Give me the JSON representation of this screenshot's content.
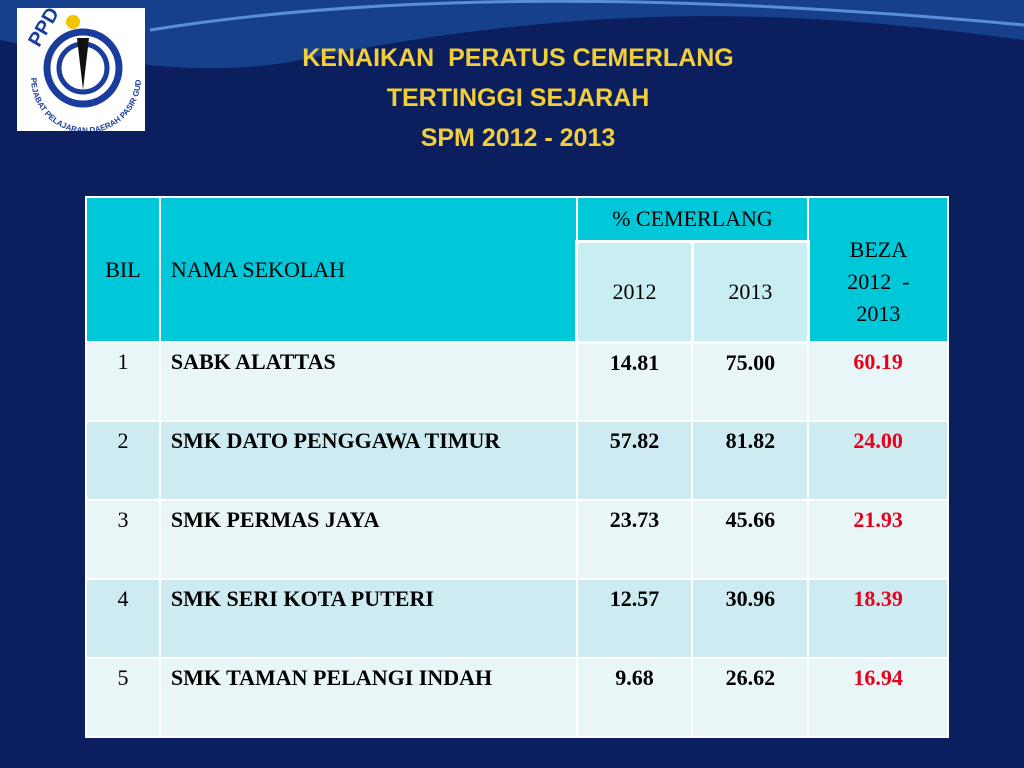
{
  "logo": {
    "abbr": "PPD",
    "name": "PEJABAT PELAJARAN DAERAH PASIR GUDANG"
  },
  "header": {
    "title_lines": [
      "KENAIKAN  PERATUS CEMERLANG",
      "TERTINGGI SEJARAH",
      "SPM 2012 - 2013"
    ]
  },
  "table": {
    "columns": {
      "bil": "BIL",
      "nama": "NAMA SEKOLAH",
      "group": "% CEMERLANG",
      "year1": "2012",
      "year2": "2013",
      "beza_lines": [
        "BEZA",
        "2012  -",
        "2013"
      ]
    },
    "rows": [
      [
        "1",
        "SABK ALATTAS",
        "14.81",
        "75.00",
        "60.19"
      ],
      [
        "2",
        "SMK DATO PENGGAWA TIMUR",
        "57.82",
        "81.82",
        "24.00"
      ],
      [
        "3",
        "SMK PERMAS JAYA",
        "23.73",
        "45.66",
        "21.93"
      ],
      [
        "4",
        "SMK SERI KOTA PUTERI",
        "12.57",
        "30.96",
        "18.39"
      ],
      [
        "5",
        "SMK TAMAN PELANGI INDAH",
        "9.68",
        "26.62",
        "16.94"
      ]
    ]
  }
}
